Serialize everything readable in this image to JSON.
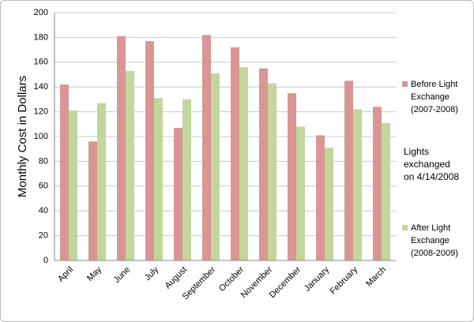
{
  "chart_data": {
    "type": "bar",
    "y_label": "Monthly Cost in Dollars",
    "categories": [
      "April",
      "May",
      "June",
      "July",
      "August",
      "September",
      "October",
      "November",
      "December",
      "January",
      "February",
      "March"
    ],
    "series": [
      {
        "name": "Before Light Exchange (2007-2008)",
        "color": "#d99694",
        "values": [
          142,
          96,
          181,
          177,
          107,
          182,
          172,
          155,
          135,
          101,
          145,
          124
        ]
      },
      {
        "name": "After Light Exchange (2008-2009)",
        "color": "#c3d69b",
        "values": [
          121,
          127,
          153,
          131,
          130,
          151,
          156,
          143,
          108,
          91,
          122,
          111
        ]
      }
    ],
    "annotation": "Lights exchanged on 4/14/2008",
    "ylim": [
      0,
      200
    ],
    "yticks": [
      0,
      20,
      40,
      60,
      80,
      100,
      120,
      140,
      160,
      180,
      200
    ],
    "grid": true,
    "legend": "right"
  }
}
